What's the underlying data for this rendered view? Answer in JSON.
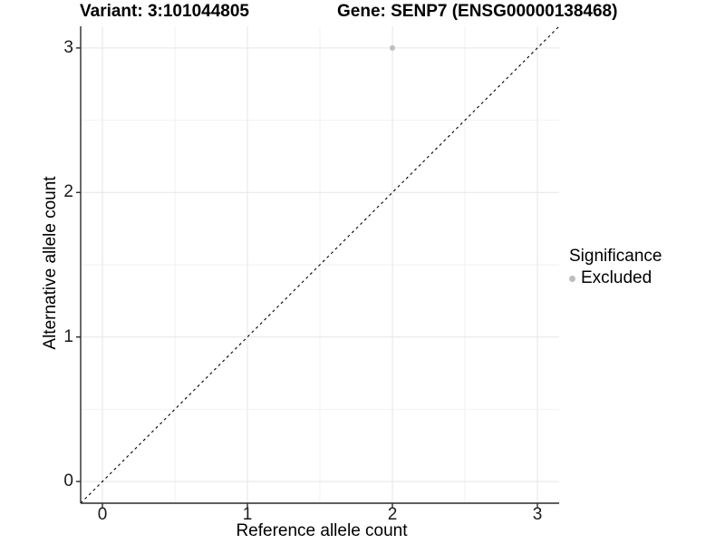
{
  "titles": {
    "variant": "Variant: 3:101044805",
    "gene": "Gene: SENP7 (ENSG00000138468)"
  },
  "chart_data": {
    "type": "scatter",
    "title": "Variant: 3:101044805 / Gene: SENP7 (ENSG00000138468)",
    "xlabel": "Reference allele count",
    "ylabel": "Alternative allele count",
    "xlim": [
      -0.15,
      3.15
    ],
    "ylim": [
      -0.15,
      3.15
    ],
    "x_ticks": [
      0,
      1,
      2,
      3
    ],
    "y_ticks": [
      0,
      1,
      2,
      3
    ],
    "minor_gridlines": [
      0.5,
      1.5,
      2.5
    ],
    "grid": true,
    "identity_line": {
      "type": "dashed",
      "equation": "y = x"
    },
    "series": [
      {
        "name": "Excluded",
        "color": "#bebebe",
        "points": [
          {
            "x": 2,
            "y": 3
          }
        ]
      }
    ],
    "legend": {
      "position": "right",
      "title": "Significance",
      "items": [
        {
          "label": "Excluded",
          "color": "#bebebe"
        }
      ]
    }
  },
  "colors": {
    "background": "#ffffff",
    "major_grid": "#e8e8e8",
    "minor_grid": "#f2f2f2",
    "axis_line": "#2a2a2a",
    "identity_line": "#000000",
    "point": "#bebebe",
    "text": "#000000"
  }
}
